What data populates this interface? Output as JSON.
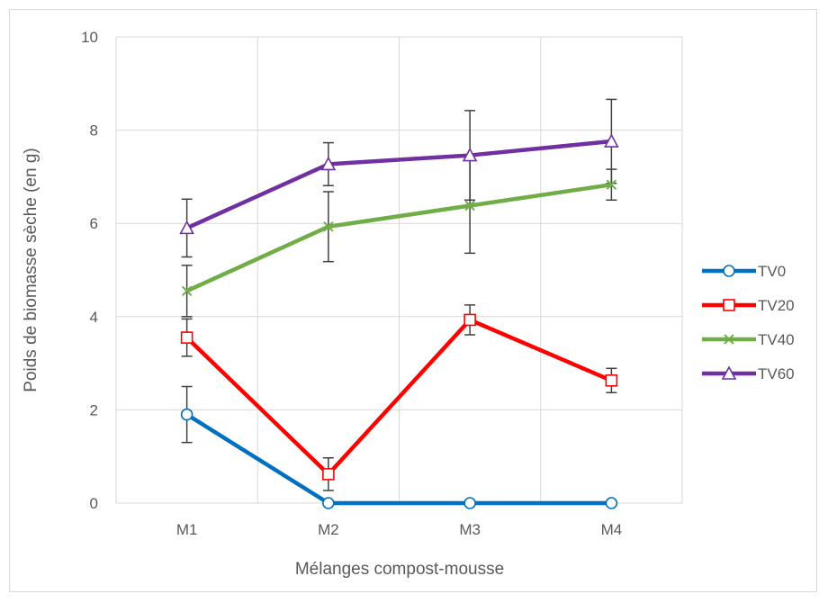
{
  "chart_data": {
    "type": "line",
    "title": "",
    "xlabel": "Mélanges compost-mousse",
    "ylabel": "Poids de biomasse sèche (en g)",
    "categories": [
      "M1",
      "M2",
      "M3",
      "M4"
    ],
    "ylim": [
      0,
      10
    ],
    "yticks": [
      0,
      2,
      4,
      6,
      8,
      10
    ],
    "grid": true,
    "legend_position": "right",
    "series": [
      {
        "name": "TV0",
        "color": "#0070C0",
        "marker": "circle",
        "values": [
          1.9,
          0.0,
          0.0,
          0.0
        ],
        "error": [
          0.6,
          0.0,
          0.0,
          0.0
        ]
      },
      {
        "name": "TV20",
        "color": "#FF0000",
        "marker": "square",
        "values": [
          3.55,
          0.62,
          3.93,
          2.63
        ],
        "error": [
          0.4,
          0.35,
          0.32,
          0.26
        ]
      },
      {
        "name": "TV40",
        "color": "#70AD47",
        "marker": "x",
        "values": [
          4.55,
          5.93,
          6.38,
          6.83
        ],
        "error": [
          0.55,
          0.75,
          1.02,
          0.33
        ]
      },
      {
        "name": "TV60",
        "color": "#7030A0",
        "marker": "triangle",
        "values": [
          5.9,
          7.27,
          7.46,
          7.76
        ],
        "error": [
          0.62,
          0.46,
          0.96,
          0.9
        ]
      }
    ]
  }
}
